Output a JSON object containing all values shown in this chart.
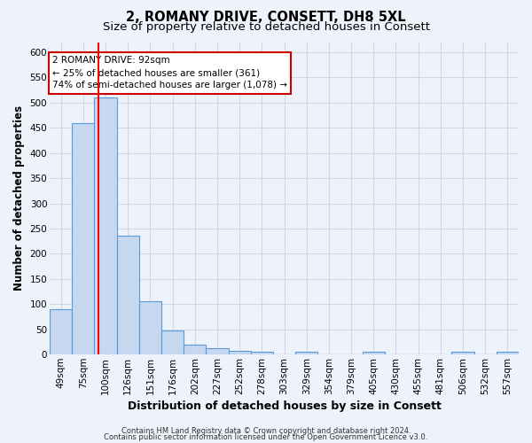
{
  "title": "2, ROMANY DRIVE, CONSETT, DH8 5XL",
  "subtitle": "Size of property relative to detached houses in Consett",
  "xlabel": "Distribution of detached houses by size in Consett",
  "ylabel": "Number of detached properties",
  "footnote1": "Contains HM Land Registry data © Crown copyright and database right 2024.",
  "footnote2": "Contains public sector information licensed under the Open Government Licence v3.0.",
  "categories": [
    "49sqm",
    "75sqm",
    "100sqm",
    "126sqm",
    "151sqm",
    "176sqm",
    "202sqm",
    "227sqm",
    "252sqm",
    "278sqm",
    "303sqm",
    "329sqm",
    "354sqm",
    "379sqm",
    "405sqm",
    "430sqm",
    "455sqm",
    "481sqm",
    "506sqm",
    "532sqm",
    "557sqm"
  ],
  "values": [
    90,
    460,
    510,
    235,
    105,
    47,
    20,
    13,
    8,
    5,
    0,
    5,
    0,
    0,
    5,
    0,
    0,
    0,
    5,
    0,
    5
  ],
  "bar_color": "#c5d8f0",
  "bar_edge_color": "#5b9bd5",
  "red_line_x": 1.68,
  "annotation_text1": "2 ROMANY DRIVE: 92sqm",
  "annotation_text2": "← 25% of detached houses are smaller (361)",
  "annotation_text3": "74% of semi-detached houses are larger (1,078) →",
  "annotation_box_color": "#ffffff",
  "annotation_box_edge": "#cc0000",
  "ylim": [
    0,
    620
  ],
  "yticks": [
    0,
    50,
    100,
    150,
    200,
    250,
    300,
    350,
    400,
    450,
    500,
    550,
    600
  ],
  "background_color": "#eef2fb",
  "grid_color": "#d0d8e8",
  "title_fontsize": 10.5,
  "subtitle_fontsize": 9.5,
  "xlabel_fontsize": 9,
  "ylabel_fontsize": 8.5,
  "tick_fontsize": 7.5,
  "annot_fontsize": 7.5,
  "footnote_fontsize": 6.0
}
